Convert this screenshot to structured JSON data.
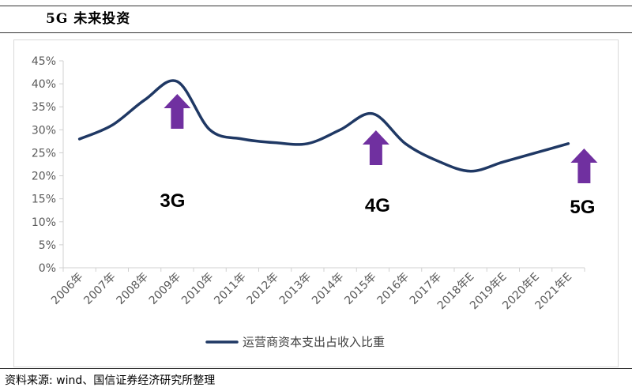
{
  "header": {
    "title": "5G 未来投资"
  },
  "source": "资料来源: wind、国信证券经济研究所整理",
  "colors": {
    "line": "#1f3864",
    "arrow": "#7030a0",
    "axis": "#d0d0d0",
    "tick_text": "#595959"
  },
  "chart_data": {
    "type": "line",
    "categories": [
      "2006年",
      "2007年",
      "2008年",
      "2009年",
      "2010年",
      "2011年",
      "2012年",
      "2013年",
      "2014年",
      "2015年",
      "2016年",
      "2017年",
      "2018年E",
      "2019年E",
      "2020年E",
      "2021年E"
    ],
    "series": [
      {
        "name": "运营商资本支出占收入比重",
        "values": [
          28,
          31,
          36.5,
          40.5,
          30,
          28,
          27.2,
          27,
          30,
          33.5,
          27,
          23.2,
          21,
          23,
          25,
          27
        ]
      }
    ],
    "ylim": [
      0,
      45
    ],
    "yticks": [
      "0%",
      "5%",
      "10%",
      "15%",
      "20%",
      "25%",
      "30%",
      "35%",
      "40%",
      "45%"
    ],
    "grid": false,
    "legend": "bottom-center",
    "annotations": [
      {
        "label": "3G",
        "arrow_at": "2009年"
      },
      {
        "label": "4G",
        "arrow_at": "2015年"
      },
      {
        "label": "5G",
        "arrow_at": "2021年E"
      }
    ]
  }
}
